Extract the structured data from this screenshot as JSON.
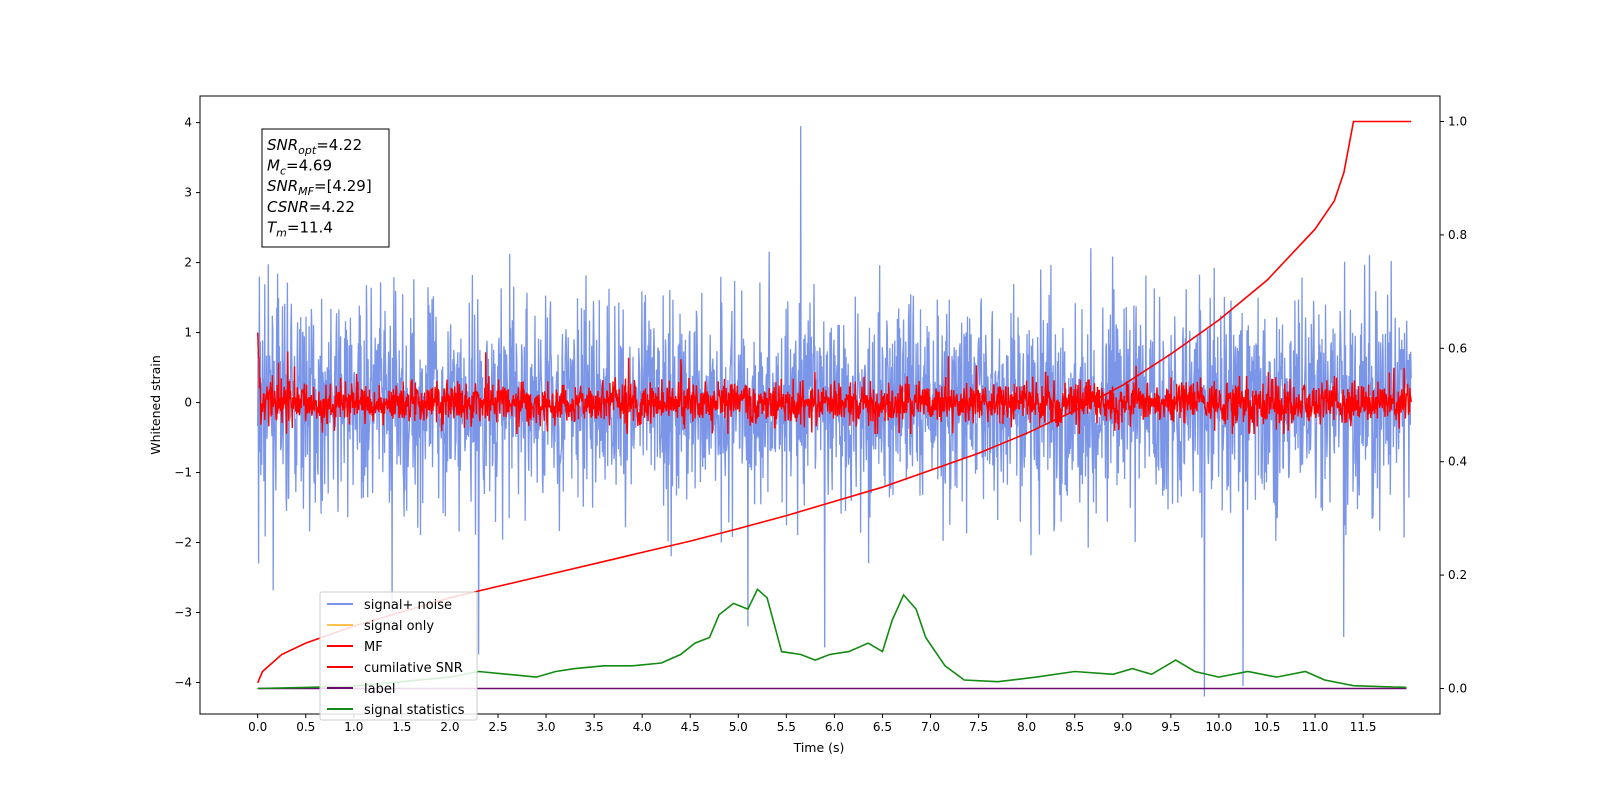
{
  "chart_data": {
    "type": "line",
    "xlabel": "Time (s)",
    "ylabel": "Whitened strain",
    "xlim": [
      -0.6,
      12.3
    ],
    "ylim": [
      -4.45,
      4.38
    ],
    "y2lim": [
      -0.045,
      1.045
    ],
    "xticks": [
      "0.0",
      "0.5",
      "1.0",
      "1.5",
      "2.0",
      "2.5",
      "3.0",
      "3.5",
      "4.0",
      "4.5",
      "5.0",
      "5.5",
      "6.0",
      "6.5",
      "7.0",
      "7.5",
      "8.0",
      "8.5",
      "9.0",
      "9.5",
      "10.0",
      "10.5",
      "11.0",
      "11.5"
    ],
    "yticks": [
      "−4",
      "−3",
      "−2",
      "−1",
      "0",
      "1",
      "2",
      "3",
      "4"
    ],
    "y2ticks": [
      "0.0",
      "0.2",
      "0.4",
      "0.6",
      "0.8",
      "1.0"
    ],
    "grid": false,
    "legend_position": "lower-left",
    "series": [
      {
        "name": "signal+ noise",
        "color": "#7b96e8",
        "axis": "left",
        "kind": "noise",
        "x_range": [
          0,
          12
        ],
        "typical_amplitude": 1.7,
        "peak_values": [
          [
            0.02,
            1.8
          ],
          [
            0.01,
            -2.3
          ],
          [
            1.4,
            -3.0
          ],
          [
            2.3,
            -3.6
          ],
          [
            5.65,
            3.95
          ],
          [
            5.1,
            -3.2
          ],
          [
            5.9,
            -3.5
          ],
          [
            9.85,
            -4.2
          ],
          [
            10.25,
            -4.05
          ],
          [
            11.3,
            -3.35
          ]
        ]
      },
      {
        "name": "signal only",
        "color": "#ffc34d",
        "axis": "left",
        "points": []
      },
      {
        "name": "MF",
        "color": "#ff0000",
        "axis": "left",
        "kind": "noise",
        "x_range": [
          0,
          12
        ],
        "typical_amplitude": 0.45,
        "start_value": 1.0
      },
      {
        "name": "cumilative SNR",
        "color": "#ff0000",
        "axis": "right",
        "points": [
          [
            0,
            0.01
          ],
          [
            0.05,
            0.03
          ],
          [
            0.25,
            0.06
          ],
          [
            0.5,
            0.08
          ],
          [
            1.0,
            0.11
          ],
          [
            1.5,
            0.135
          ],
          [
            2.0,
            0.16
          ],
          [
            2.5,
            0.18
          ],
          [
            3.0,
            0.2
          ],
          [
            3.5,
            0.22
          ],
          [
            4.0,
            0.24
          ],
          [
            4.5,
            0.26
          ],
          [
            5.0,
            0.282
          ],
          [
            5.5,
            0.305
          ],
          [
            6.0,
            0.33
          ],
          [
            6.5,
            0.355
          ],
          [
            7.0,
            0.385
          ],
          [
            7.5,
            0.415
          ],
          [
            8.0,
            0.45
          ],
          [
            8.5,
            0.49
          ],
          [
            9.0,
            0.535
          ],
          [
            9.5,
            0.59
          ],
          [
            10.0,
            0.65
          ],
          [
            10.5,
            0.72
          ],
          [
            11.0,
            0.81
          ],
          [
            11.2,
            0.86
          ],
          [
            11.3,
            0.91
          ],
          [
            11.4,
            1.0
          ],
          [
            12.0,
            1.0
          ]
        ]
      },
      {
        "name": "label",
        "color": "#6a0a70",
        "axis": "right",
        "points": [
          [
            0,
            0.0
          ],
          [
            11.95,
            0.0
          ]
        ]
      },
      {
        "name": "signal statistics",
        "color": "#138a13",
        "axis": "right",
        "points": [
          [
            0,
            0.0
          ],
          [
            0.5,
            0.002
          ],
          [
            1.0,
            0.004
          ],
          [
            1.5,
            0.012
          ],
          [
            2.0,
            0.02
          ],
          [
            2.3,
            0.03
          ],
          [
            2.6,
            0.025
          ],
          [
            2.9,
            0.02
          ],
          [
            3.1,
            0.03
          ],
          [
            3.3,
            0.035
          ],
          [
            3.6,
            0.04
          ],
          [
            3.9,
            0.04
          ],
          [
            4.2,
            0.045
          ],
          [
            4.4,
            0.06
          ],
          [
            4.55,
            0.08
          ],
          [
            4.7,
            0.09
          ],
          [
            4.8,
            0.13
          ],
          [
            4.95,
            0.15
          ],
          [
            5.1,
            0.14
          ],
          [
            5.2,
            0.175
          ],
          [
            5.3,
            0.16
          ],
          [
            5.45,
            0.065
          ],
          [
            5.65,
            0.06
          ],
          [
            5.8,
            0.05
          ],
          [
            5.95,
            0.06
          ],
          [
            6.15,
            0.065
          ],
          [
            6.35,
            0.08
          ],
          [
            6.5,
            0.065
          ],
          [
            6.6,
            0.12
          ],
          [
            6.72,
            0.165
          ],
          [
            6.85,
            0.14
          ],
          [
            6.95,
            0.09
          ],
          [
            7.15,
            0.04
          ],
          [
            7.35,
            0.015
          ],
          [
            7.7,
            0.012
          ],
          [
            8.1,
            0.02
          ],
          [
            8.5,
            0.03
          ],
          [
            8.9,
            0.025
          ],
          [
            9.1,
            0.035
          ],
          [
            9.3,
            0.025
          ],
          [
            9.55,
            0.05
          ],
          [
            9.75,
            0.03
          ],
          [
            10.0,
            0.02
          ],
          [
            10.3,
            0.03
          ],
          [
            10.6,
            0.02
          ],
          [
            10.9,
            0.03
          ],
          [
            11.1,
            0.015
          ],
          [
            11.4,
            0.005
          ],
          [
            11.95,
            0.002
          ]
        ]
      }
    ],
    "annotations": [
      {
        "name": "SNR",
        "sub": "opt",
        "value": "=4.22"
      },
      {
        "name": "M",
        "sub": "c",
        "value": "=4.69"
      },
      {
        "name": "SNR",
        "sub": "MF",
        "value": "=[4.29]"
      },
      {
        "name": "CSNR",
        "sub": "",
        "value": "=4.22"
      },
      {
        "name": "T",
        "sub": "m",
        "value": "=11.4"
      }
    ]
  }
}
